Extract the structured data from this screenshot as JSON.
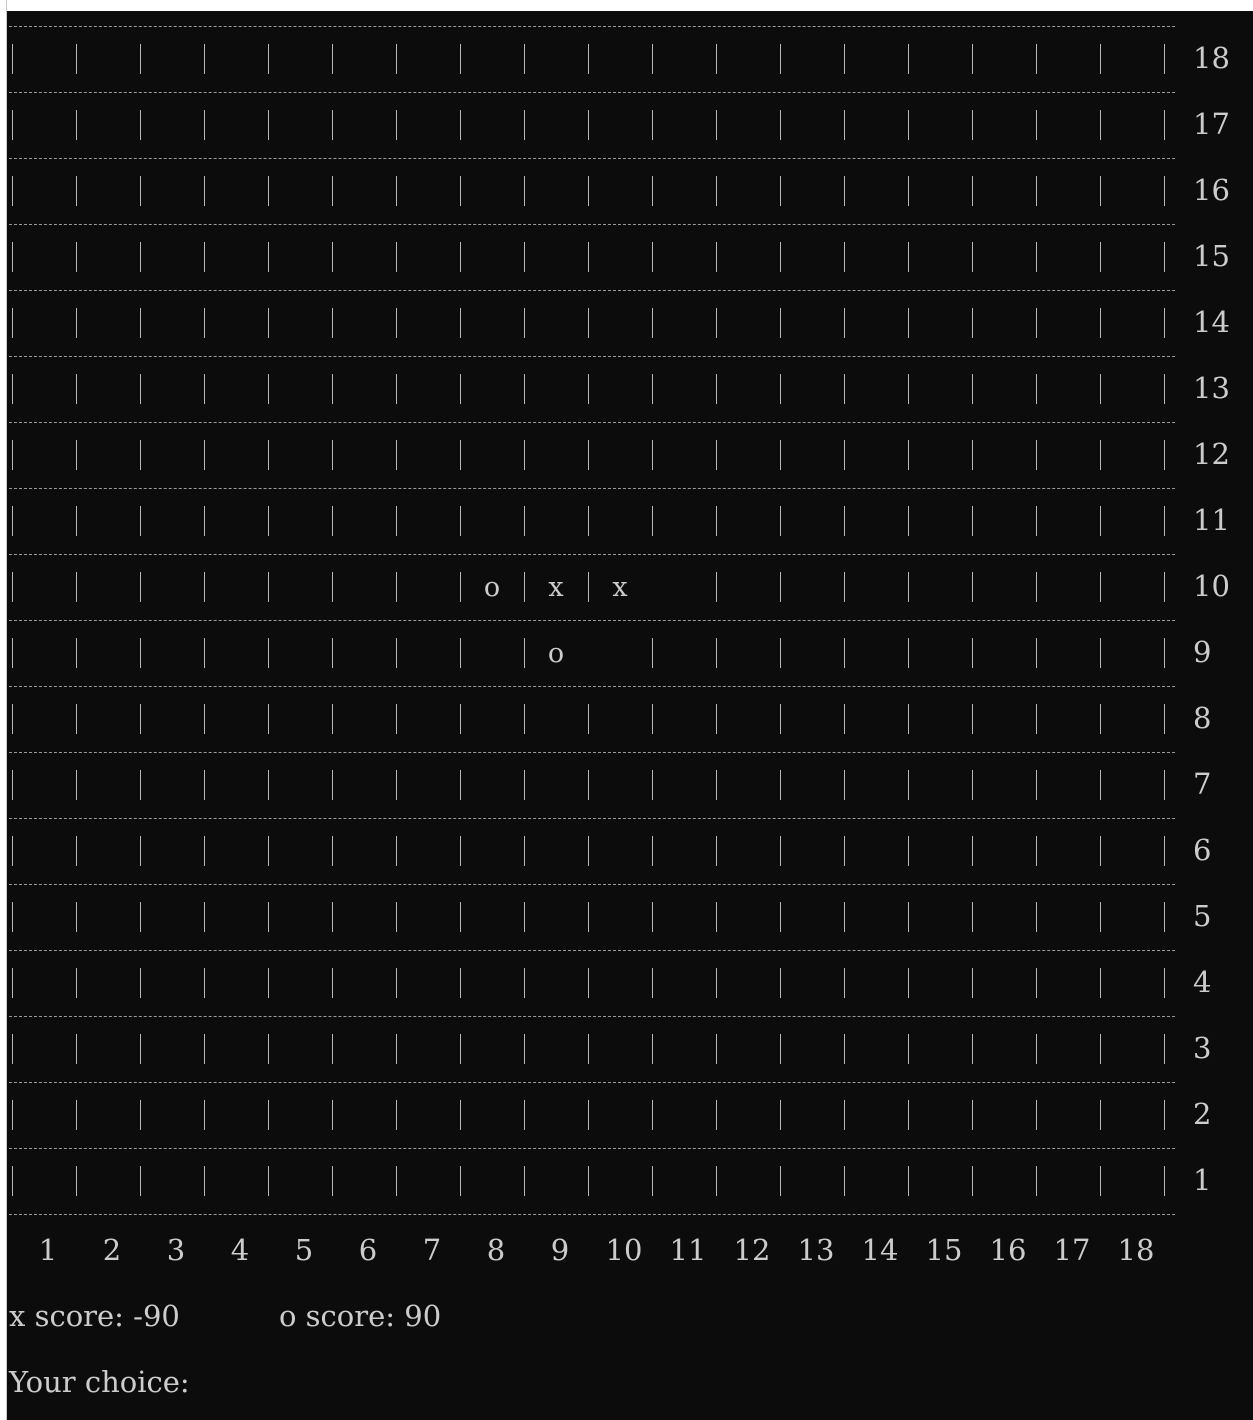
{
  "board": {
    "size": 18,
    "row_labels": [
      "18",
      "17",
      "16",
      "15",
      "14",
      "13",
      "12",
      "11",
      "10",
      "9",
      "8",
      "7",
      "6",
      "5",
      "4",
      "3",
      "2",
      "1"
    ],
    "col_labels": [
      "1",
      "2",
      "3",
      "4",
      "5",
      "6",
      "7",
      "8",
      "9",
      "10",
      "11",
      "12",
      "13",
      "14",
      "15",
      "16",
      "17",
      "18"
    ],
    "pieces": [
      {
        "row": 10,
        "col": 8,
        "mark": "o"
      },
      {
        "row": 10,
        "col": 9,
        "mark": "x"
      },
      {
        "row": 10,
        "col": 10,
        "mark": "x"
      },
      {
        "row": 9,
        "col": 9,
        "mark": "o"
      }
    ]
  },
  "status": {
    "x_score_text": "x score: -90",
    "o_score_text": "o score: 90",
    "prompt_text": "Your choice:",
    "prompt_value": ""
  },
  "colors": {
    "background": "#0c0c0c",
    "foreground": "#cccccc"
  }
}
